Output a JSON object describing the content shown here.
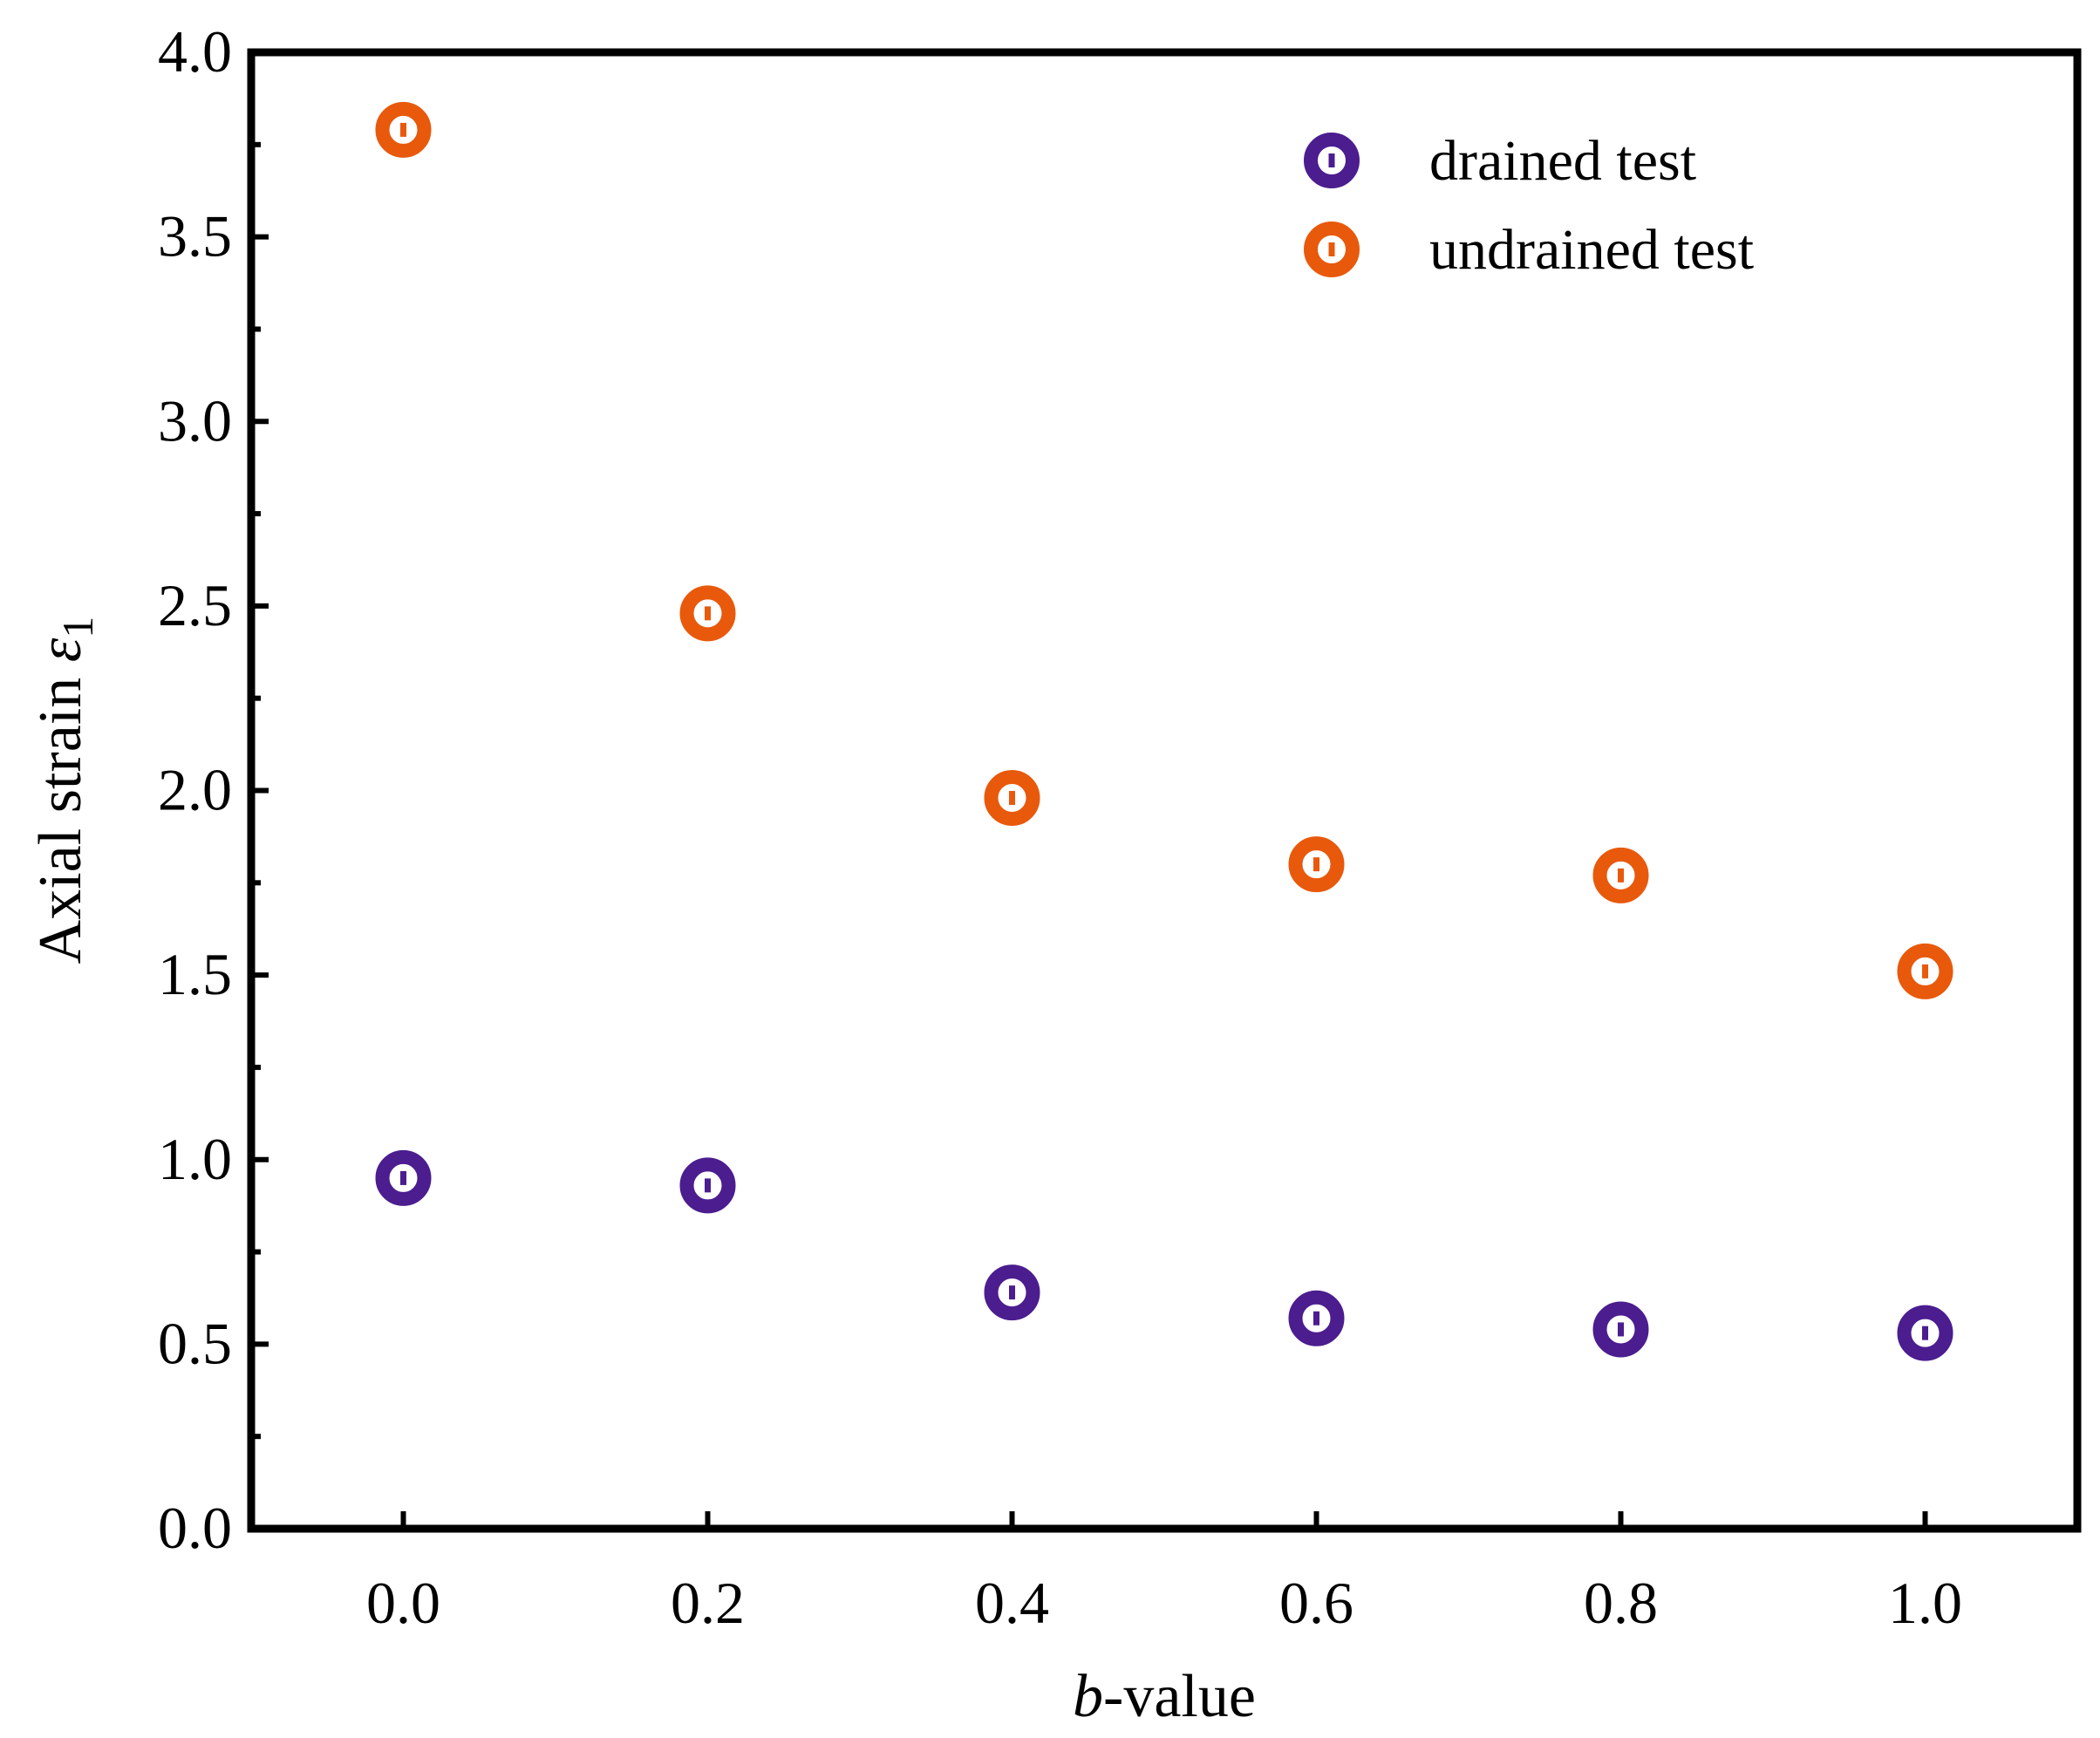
{
  "chart_data": {
    "type": "scatter",
    "title": "",
    "xlabel_italic": "b",
    "xlabel_rest": "-value",
    "ylabel_main": "Axial strain ",
    "ylabel_symbol": "ε",
    "ylabel_subscript": "1",
    "xlim": [
      -0.1,
      1.1
    ],
    "ylim": [
      0.0,
      4.0
    ],
    "x_ticks": [
      0.0,
      0.2,
      0.4,
      0.6,
      0.8,
      1.0
    ],
    "x_tick_labels": [
      "0.0",
      "0.2",
      "0.4",
      "0.6",
      "0.8",
      "1.0"
    ],
    "y_ticks": [
      0.0,
      0.5,
      1.0,
      1.5,
      2.0,
      2.5,
      3.0,
      3.5,
      4.0
    ],
    "y_tick_labels": [
      "0.0",
      "0.5",
      "1.0",
      "1.5",
      "2.0",
      "2.5",
      "3.0",
      "3.5",
      "4.0"
    ],
    "grid": false,
    "legend_position": "top-right",
    "series": [
      {
        "name": "drained test",
        "color": "#4b1d8f",
        "x": [
          0.0,
          0.2,
          0.4,
          0.6,
          0.8,
          1.0
        ],
        "y": [
          0.95,
          0.93,
          0.64,
          0.57,
          0.54,
          0.53
        ]
      },
      {
        "name": "undrained test",
        "color": "#e8590c",
        "x": [
          0.0,
          0.2,
          0.4,
          0.6,
          0.8,
          1.0
        ],
        "y": [
          3.79,
          2.48,
          1.98,
          1.8,
          1.77,
          1.51
        ]
      }
    ]
  }
}
